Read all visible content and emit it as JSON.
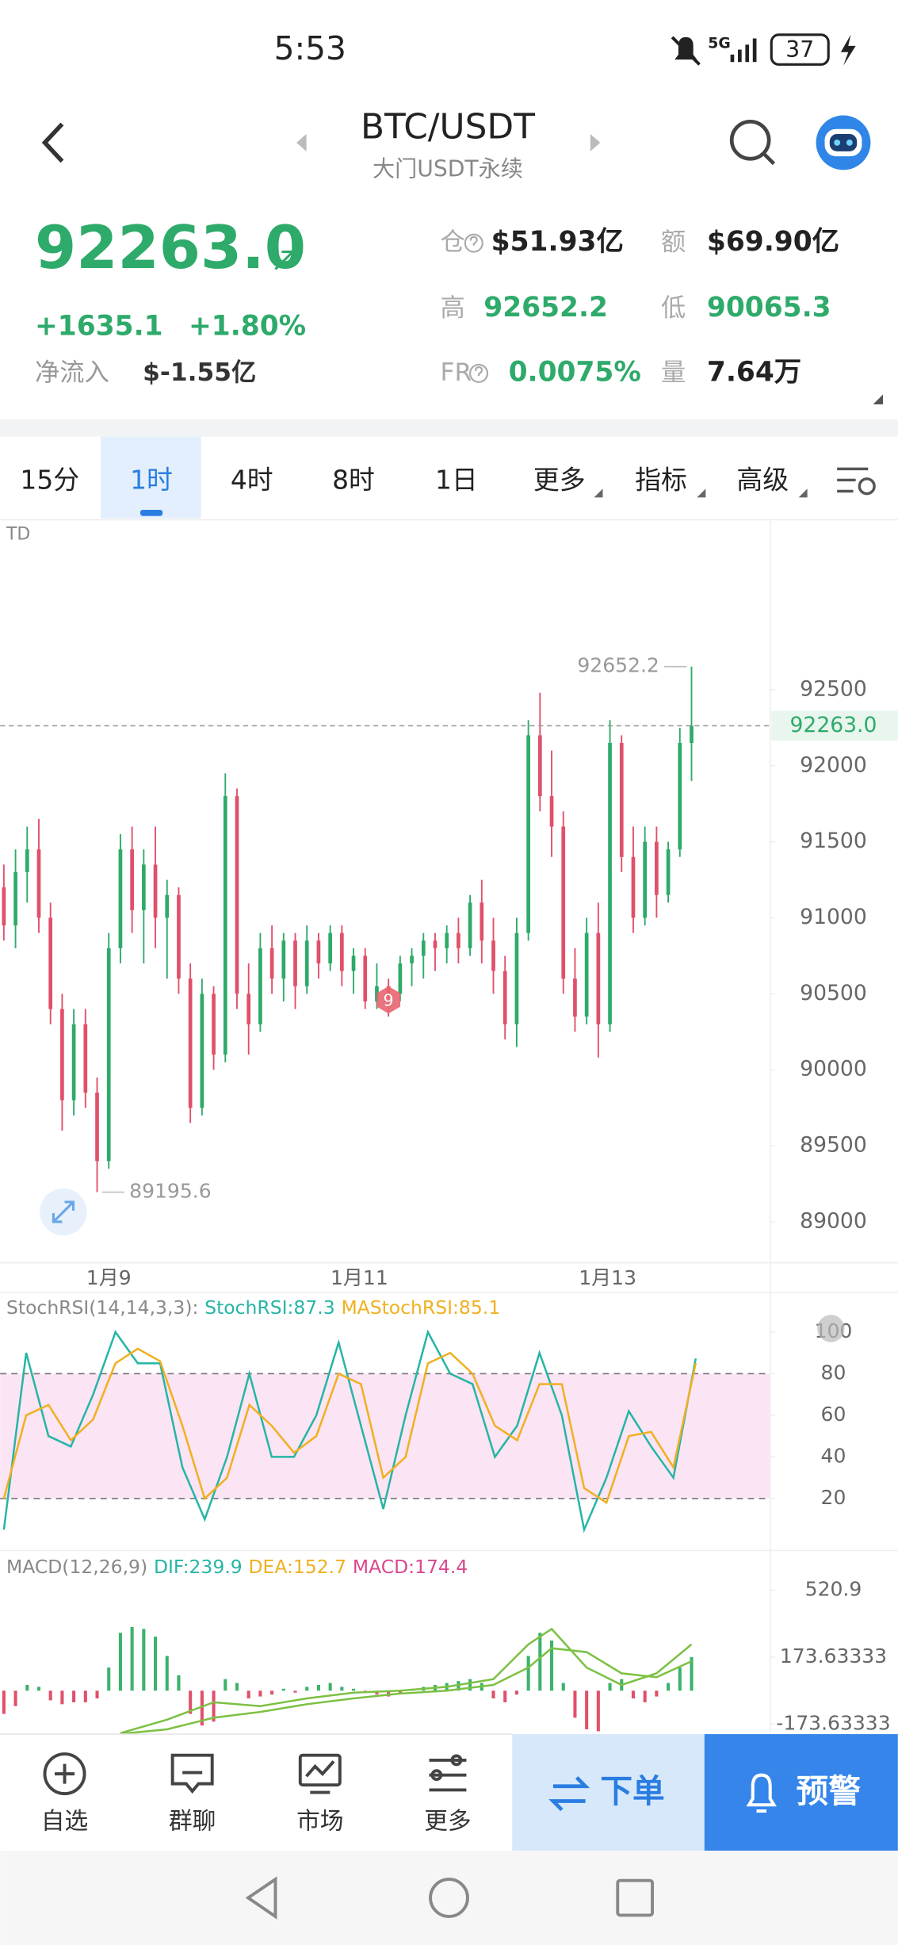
{
  "status_bar": {
    "time": "5:53",
    "network": "5G",
    "battery": "37"
  },
  "header": {
    "symbol": "BTC/USDT",
    "subtitle": "大门USDT永续"
  },
  "quote": {
    "price": "92263.0",
    "change": "+1635.1",
    "change_pct": "+1.80%",
    "net_inflow_label": "净流入",
    "net_inflow": "$-1.55亿",
    "stats": [
      {
        "label": "仓",
        "value": "$51.93亿"
      },
      {
        "label": "额",
        "value": "$69.90亿"
      },
      {
        "label": "高",
        "value": "92652.2"
      },
      {
        "label": "低",
        "value": "90065.3"
      },
      {
        "label": "FR",
        "value": "0.0075%"
      },
      {
        "label": "量",
        "value": "7.64万"
      }
    ]
  },
  "tabs": [
    "15分",
    "1时",
    "4时",
    "8时",
    "1日",
    "更多",
    "指标",
    "高级"
  ],
  "selected_tab": 1,
  "chart_data": [
    {
      "type": "candlestick",
      "label": "TD",
      "open": [
        91200,
        90950,
        91300,
        91450,
        91000,
        90400,
        89800,
        90300,
        89850,
        89400,
        90800,
        91450,
        91050,
        91350,
        91000,
        91150,
        90600,
        89750,
        90500,
        90100,
        91800,
        90500,
        90300,
        90800,
        90600,
        90850,
        90550,
        90850,
        90700,
        90900,
        90650,
        90750,
        90450,
        90550,
        90500,
        90700,
        90750,
        90850,
        90800,
        90900,
        90800,
        91100,
        90850,
        90650,
        90300,
        90900,
        92200,
        91800,
        91600,
        90600,
        90350,
        90900,
        90300,
        92150,
        91400,
        91000,
        91500,
        91150,
        91450,
        92150
      ],
      "high": [
        91350,
        91450,
        91600,
        91650,
        91100,
        90500,
        90400,
        90400,
        89950,
        90900,
        91550,
        91600,
        91450,
        91600,
        91250,
        91200,
        90700,
        90600,
        90550,
        91950,
        91850,
        90700,
        90900,
        90950,
        90900,
        90900,
        90950,
        90900,
        90950,
        90950,
        90800,
        90800,
        90700,
        90600,
        90750,
        90800,
        90900,
        90900,
        90950,
        91000,
        91150,
        91250,
        91000,
        90750,
        91000,
        92300,
        92480,
        92100,
        91700,
        90800,
        91000,
        91100,
        92300,
        92200,
        91600,
        91600,
        91600,
        91500,
        92250,
        92652.2
      ],
      "low": [
        90850,
        90800,
        91100,
        90900,
        90300,
        89600,
        89700,
        89750,
        89195.6,
        89350,
        90700,
        90900,
        90700,
        90800,
        90600,
        90500,
        89650,
        89700,
        90000,
        90050,
        90400,
        90100,
        90250,
        90500,
        90450,
        90400,
        90500,
        90600,
        90650,
        90550,
        90500,
        90400,
        90400,
        90350,
        90450,
        90550,
        90600,
        90650,
        90700,
        90700,
        90750,
        90700,
        90500,
        90200,
        90150,
        90850,
        91700,
        91400,
        90500,
        90250,
        90300,
        90080,
        90250,
        91300,
        90900,
        90950,
        91000,
        91100,
        91400,
        91900
      ],
      "close": [
        90950,
        91300,
        91450,
        91000,
        90400,
        89800,
        90300,
        89850,
        89400,
        90800,
        91450,
        91050,
        91350,
        91000,
        91150,
        90600,
        89750,
        90500,
        90100,
        91800,
        90500,
        90300,
        90800,
        90600,
        90850,
        90550,
        90850,
        90700,
        90900,
        90650,
        90750,
        90450,
        90550,
        90500,
        90700,
        90750,
        90850,
        90800,
        90900,
        90800,
        91100,
        90850,
        90650,
        90300,
        90900,
        92200,
        91800,
        91600,
        90600,
        90350,
        90900,
        90300,
        92150,
        91400,
        91000,
        91500,
        91150,
        91450,
        92150,
        92263
      ],
      "up_color": "#2eaa6a",
      "down_color": "#e0506a",
      "ylim": [
        88731,
        93610
      ],
      "yticks": [
        92500,
        92000,
        91500,
        91000,
        90500,
        90000,
        89500,
        89000
      ],
      "last_price": {
        "value": 92263,
        "label": "92263.0"
      },
      "xticks": [
        {
          "value": 9,
          "label": "1月9"
        },
        {
          "value": 30.5,
          "label": "1月11"
        },
        {
          "value": 51.8,
          "label": "1月13"
        }
      ],
      "marker": {
        "x": 33,
        "y": 90460,
        "text": 9
      }
    },
    {
      "type": "line",
      "title": "StochRSI(14,14,3,3):",
      "series": [
        {
          "name": "StochRSI:87.3",
          "color": "#26b5a5",
          "values": [
            5,
            90,
            50,
            45,
            70,
            100,
            85,
            85,
            35,
            10,
            40,
            80,
            40,
            40,
            60,
            95,
            55,
            15,
            60,
            100,
            80,
            75,
            40,
            55,
            90,
            60,
            5,
            30,
            62,
            45,
            30,
            87.3
          ]
        },
        {
          "name": "MAStochRSI:85.1",
          "color": "#f0b020",
          "values": [
            20,
            60,
            65,
            48,
            58,
            85,
            92,
            86,
            55,
            20,
            30,
            65,
            55,
            42,
            50,
            80,
            75,
            30,
            40,
            85,
            90,
            80,
            55,
            48,
            75,
            75,
            25,
            18,
            50,
            52,
            35,
            85.1
          ]
        }
      ],
      "band": [
        20,
        80
      ],
      "band_color": "#fbe4f4",
      "ylim": [
        -5,
        119
      ],
      "yticks": [
        100,
        80,
        60,
        40,
        20
      ]
    },
    {
      "type": "macd",
      "title": "MACD(12,26,9)",
      "x": [
        10,
        14,
        18,
        22,
        26,
        30,
        34,
        38,
        42,
        45,
        47,
        50,
        53,
        56,
        59
      ],
      "series": [
        {
          "name": "DIF:239.9",
          "color": "#26b5a5",
          "values": [
            -220,
            -150,
            -60,
            -80,
            -40,
            -10,
            0,
            20,
            60,
            240,
            320,
            120,
            30,
            90,
            239.9
          ]
        },
        {
          "name": "DEA:152.7",
          "color": "#f0b020",
          "values": [
            -224,
            -200,
            -140,
            -110,
            -70,
            -40,
            -15,
            0,
            30,
            120,
            220,
            200,
            90,
            70,
            152.7
          ]
        }
      ],
      "line_color": "#7cc043",
      "histogram": {
        "name": "MACD:174.4",
        "color": "#d9488f",
        "up_color": "#3bb36a",
        "down_color": "#e0506a",
        "values": [
          -120,
          -80,
          30,
          20,
          -50,
          -70,
          -60,
          -60,
          -40,
          120,
          300,
          330,
          320,
          280,
          180,
          80,
          -120,
          -180,
          -160,
          60,
          40,
          -40,
          -30,
          -20,
          10,
          -10,
          20,
          30,
          40,
          20,
          10,
          -10,
          -20,
          -30,
          -10,
          10,
          20,
          30,
          40,
          50,
          60,
          40,
          -40,
          -60,
          -20,
          180,
          300,
          260,
          40,
          -140,
          -200,
          -210,
          40,
          60,
          -40,
          -60,
          -30,
          40,
          120,
          174.4
        ]
      },
      "ylim": [
        -225,
        694
      ],
      "yticks": [
        520.9,
        173.63333,
        -173.63333
      ]
    }
  ],
  "bottom_nav": {
    "items": [
      "自选",
      "群聊",
      "市场",
      "更多"
    ],
    "order": "下单",
    "alert": "预警"
  }
}
